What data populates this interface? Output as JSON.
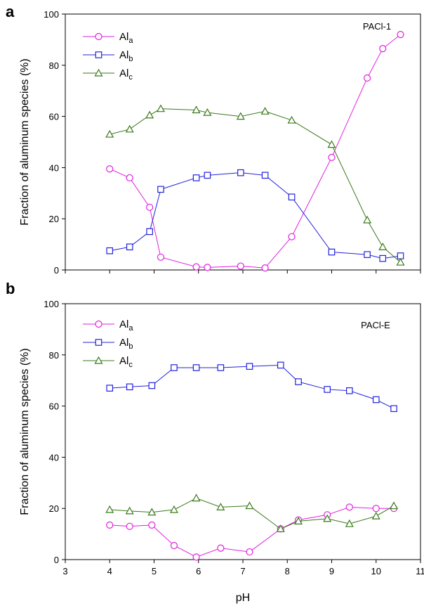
{
  "figure": {
    "xlabel": "pH",
    "ylabel": "Fraction of aluminum species (%)"
  },
  "chart_data": [
    {
      "type": "line",
      "panel_letter": "a",
      "tag": "PACl-1",
      "xlim": [
        3,
        11
      ],
      "ylim": [
        0,
        100
      ],
      "xticks": [
        3,
        4,
        5,
        6,
        7,
        8,
        9,
        10,
        11
      ],
      "yticks": [
        0,
        20,
        40,
        60,
        80,
        100
      ],
      "show_xtick_labels": false,
      "legend_position": "top-left",
      "series": [
        {
          "name": "Al",
          "sub": "a",
          "marker": "circle",
          "color": "#e020e0",
          "x": [
            4.0,
            4.45,
            4.9,
            5.15,
            5.95,
            6.2,
            6.95,
            7.5,
            8.1,
            9.0,
            9.8,
            10.15,
            10.55
          ],
          "y": [
            39.5,
            36.0,
            24.5,
            5.0,
            1.2,
            1.0,
            1.5,
            0.8,
            13.0,
            44.0,
            75.0,
            86.5,
            92.0
          ]
        },
        {
          "name": "Al",
          "sub": "b",
          "marker": "square",
          "color": "#2222dd",
          "x": [
            4.0,
            4.45,
            4.9,
            5.15,
            5.95,
            6.2,
            6.95,
            7.5,
            8.1,
            9.0,
            9.8,
            10.15,
            10.55
          ],
          "y": [
            7.5,
            9.0,
            15.0,
            31.5,
            36.0,
            37.0,
            38.0,
            37.0,
            28.5,
            7.0,
            6.0,
            4.5,
            5.5
          ]
        },
        {
          "name": "Al",
          "sub": "c",
          "marker": "triangle",
          "color": "#3a7a1a",
          "x": [
            4.0,
            4.45,
            4.9,
            5.15,
            5.95,
            6.2,
            6.95,
            7.5,
            8.1,
            9.0,
            9.8,
            10.15,
            10.55
          ],
          "y": [
            53.0,
            55.0,
            60.5,
            63.0,
            62.5,
            61.5,
            60.0,
            62.0,
            58.5,
            49.0,
            19.5,
            9.0,
            3.0
          ]
        }
      ]
    },
    {
      "type": "line",
      "panel_letter": "b",
      "tag": "PACl-E",
      "xlim": [
        3,
        11
      ],
      "ylim": [
        0,
        100
      ],
      "xticks": [
        3,
        4,
        5,
        6,
        7,
        8,
        9,
        10,
        11
      ],
      "yticks": [
        0,
        20,
        40,
        60,
        80,
        100
      ],
      "show_xtick_labels": true,
      "legend_position": "top-left",
      "series": [
        {
          "name": "Al",
          "sub": "a",
          "marker": "circle",
          "color": "#e020e0",
          "x": [
            4.0,
            4.45,
            4.95,
            5.45,
            5.95,
            6.5,
            7.15,
            7.85,
            8.25,
            8.9,
            9.4,
            10.0,
            10.4
          ],
          "y": [
            13.5,
            13.0,
            13.5,
            5.5,
            1.0,
            4.5,
            3.0,
            12.0,
            15.5,
            17.5,
            20.5,
            20.0,
            20.0
          ]
        },
        {
          "name": "Al",
          "sub": "b",
          "marker": "square",
          "color": "#2222dd",
          "x": [
            4.0,
            4.45,
            4.95,
            5.45,
            5.95,
            6.5,
            7.15,
            7.85,
            8.25,
            8.9,
            9.4,
            10.0,
            10.4
          ],
          "y": [
            67.0,
            67.5,
            68.0,
            75.0,
            75.0,
            75.0,
            75.5,
            76.0,
            69.5,
            66.5,
            66.0,
            62.5,
            59.0
          ]
        },
        {
          "name": "Al",
          "sub": "c",
          "marker": "triangle",
          "color": "#3a7a1a",
          "x": [
            4.0,
            4.45,
            4.95,
            5.45,
            5.95,
            6.5,
            7.15,
            7.85,
            8.25,
            8.9,
            9.4,
            10.0,
            10.4
          ],
          "y": [
            19.5,
            19.0,
            18.5,
            19.5,
            24.0,
            20.5,
            21.0,
            12.0,
            15.0,
            16.0,
            14.0,
            17.0,
            21.0
          ]
        }
      ]
    }
  ]
}
